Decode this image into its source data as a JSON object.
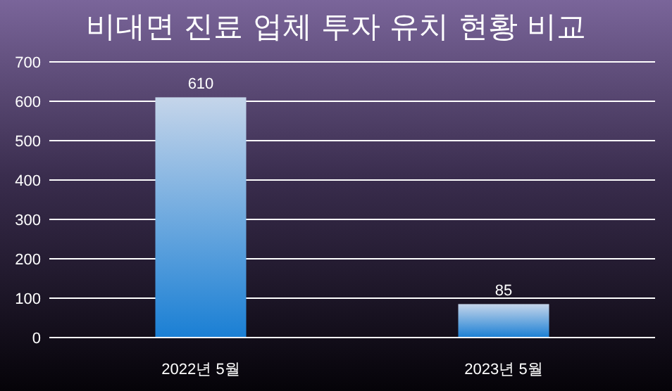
{
  "chart_data": {
    "type": "bar",
    "title": "비대면 진료 업체 투자 유치 현황 비교",
    "categories": [
      "2022년 5월",
      "2023년 5월"
    ],
    "values": [
      610,
      85
    ],
    "color": "#1a7fd4",
    "ylim": [
      0,
      700
    ],
    "yticks": [
      0,
      100,
      200,
      300,
      400,
      500,
      600,
      700
    ],
    "grid": "y",
    "data_labels": true
  }
}
